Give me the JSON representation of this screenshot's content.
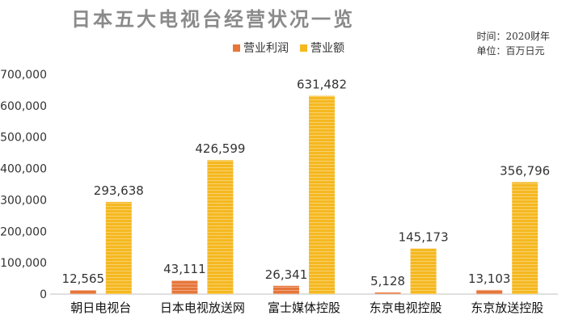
{
  "title": "日本五大电视台经营状况一览",
  "meta": {
    "time": "时间：2020财年",
    "unit": "单位：百万日元"
  },
  "colors": {
    "profit": "#e6763a",
    "revenue": "#f5b820",
    "axis": "#bfbfbf"
  },
  "chart_data": {
    "type": "bar",
    "categories": [
      "朝日电视台",
      "日本电视放送网",
      "富士媒体控股",
      "东京电视控股",
      "东京放送控股"
    ],
    "series": [
      {
        "name": "营业利润",
        "values": [
          12565,
          43111,
          26341,
          5128,
          13103
        ],
        "labels": [
          "12,565",
          "43,111",
          "26,341",
          "5,128",
          "13,103"
        ]
      },
      {
        "name": "营业额",
        "values": [
          293638,
          426599,
          631482,
          145173,
          356796
        ],
        "labels": [
          "293,638",
          "426,599",
          "631,482",
          "145,173",
          "356,796"
        ]
      }
    ],
    "ylim": [
      0,
      700000
    ],
    "yticks": [
      0,
      100000,
      200000,
      300000,
      400000,
      500000,
      600000,
      700000
    ],
    "ytick_labels": [
      "0",
      "100,000",
      "200,000",
      "300,000",
      "400,000",
      "500,000",
      "600,000",
      "700,000"
    ],
    "grid": false,
    "legend": "top"
  }
}
